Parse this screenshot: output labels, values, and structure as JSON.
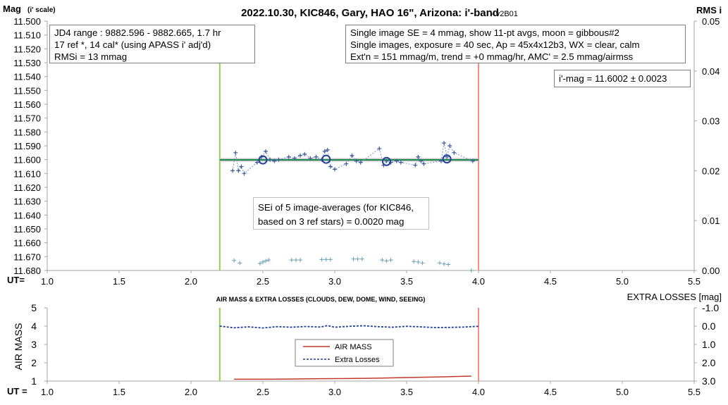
{
  "chart_data": [
    {
      "type": "scatter",
      "title": "2022.10.30, KIC846, Gary, HAO 16\", Arizona: i'-band",
      "version": "- v2B01",
      "ylabel_left": "Mag",
      "ylabel_left_sub": "(i' scale)",
      "ylabel_right": "RMS i",
      "xlabel": "UT=",
      "xlim": [
        1.0,
        5.5
      ],
      "ylim_left": [
        11.5,
        11.68
      ],
      "ylim_right": [
        0.0,
        0.05
      ],
      "left_ticks": [
        "11.500",
        "11.510",
        "11.520",
        "11.530",
        "11.540",
        "11.550",
        "11.560",
        "11.570",
        "11.580",
        "11.590",
        "11.600",
        "11.610",
        "11.620",
        "11.630",
        "11.640",
        "11.650",
        "11.660",
        "11.670",
        "11.680"
      ],
      "right_ticks": [
        "0.05",
        "0.04",
        "0.03",
        "0.02",
        "0.01",
        "0.00"
      ],
      "x_ticks": [
        "1.0",
        "1.5",
        "2.0",
        "2.5",
        "3.0",
        "3.5",
        "4.0",
        "4.5",
        "5.0",
        "5.5"
      ],
      "vlines": [
        {
          "name": "start",
          "x": 2.2,
          "color": "#92d050"
        },
        {
          "name": "end",
          "x": 4.0,
          "color": "#ff8a80"
        }
      ],
      "fit_line": {
        "x": [
          2.2,
          4.0
        ],
        "y": 11.6002,
        "color": "#1e8c4e"
      },
      "series": [
        {
          "kind": "single-images",
          "x": [
            2.29,
            2.31,
            2.33,
            2.35,
            2.37,
            2.46,
            2.49,
            2.52,
            2.55,
            2.58,
            2.61,
            2.68,
            2.72,
            2.76,
            2.79,
            2.83,
            2.87,
            2.91,
            2.93,
            2.95,
            2.97,
            3.0,
            3.08,
            3.12,
            3.15,
            3.18,
            3.31,
            3.34,
            3.36,
            3.39,
            3.43,
            3.46,
            3.56,
            3.58,
            3.6,
            3.62,
            3.74,
            3.76,
            3.78,
            3.8,
            3.83,
            3.96
          ],
          "y": [
            11.608,
            11.595,
            11.608,
            11.605,
            11.61,
            11.602,
            11.598,
            11.594,
            11.6,
            11.601,
            11.6,
            11.598,
            11.599,
            11.597,
            11.596,
            11.599,
            11.598,
            11.6,
            11.594,
            11.593,
            11.605,
            11.607,
            11.603,
            11.597,
            11.601,
            11.602,
            11.592,
            11.604,
            11.601,
            11.602,
            11.601,
            11.602,
            11.604,
            11.598,
            11.601,
            11.603,
            11.601,
            11.588,
            11.598,
            11.59,
            11.595,
            11.601
          ]
        },
        {
          "kind": "11-pt averages",
          "x": [
            2.5,
            2.94,
            3.36,
            3.78
          ],
          "y": [
            11.6002,
            11.5997,
            11.6013,
            11.5995
          ]
        },
        {
          "kind": "RMS (right axis)",
          "x": [
            2.3,
            2.34,
            2.48,
            2.5,
            2.52,
            2.54,
            2.7,
            2.73,
            2.76,
            2.91,
            2.94,
            2.97,
            3.13,
            3.16,
            3.19,
            3.33,
            3.36,
            3.39,
            3.55,
            3.58,
            3.61,
            3.73,
            3.76,
            3.79,
            3.95
          ],
          "y": [
            0.002,
            0.0015,
            0.0014,
            0.0017,
            0.0019,
            0.0021,
            0.0021,
            0.0021,
            0.0021,
            0.0022,
            0.0022,
            0.0022,
            0.0023,
            0.0023,
            0.0023,
            0.0021,
            0.0019,
            0.0021,
            0.0018,
            0.0017,
            0.0015,
            0.0015,
            0.0013,
            0.0012,
            0.0
          ]
        }
      ],
      "info_left": [
        "JD4 range : 9882.596 - 9882.665, 1.7  hr",
        "17 ref *, 14 cal* (using APASS i' adj'd)",
        "RMSi = 13 mmag"
      ],
      "info_right": [
        "Single image SE = 4 mmag, show 11-pt avgs, moon = gibbous#2",
        "Single images, exposure = 40 sec, Ap = 45x4x12b3, WX = clear, calm",
        "Ext'n = 151 mmag/m, trend = +0 mmag/hr, AMC' = 2.5 mmag/airmss"
      ],
      "result_box": "i'-mag = 11.6002 ± 0.0023",
      "sei_note": [
        "SEi of 5 image-averages (for KIC846,",
        "based on 3 ref stars) = 0.0020 mag"
      ]
    },
    {
      "type": "line",
      "title": "AIR MASS & EXTRA LOSSES (CLOUDS, DEW, DOME, WIND, SEEING)",
      "ylabel_left": "AIR MASS",
      "ylabel_right": "EXTRA LOSSES [mag]",
      "xlabel": "UT =",
      "xlim": [
        1.0,
        5.5
      ],
      "ylim_left": [
        1,
        5
      ],
      "ylim_right": [
        -1.0,
        3.0
      ],
      "left_ticks": [
        "5",
        "4",
        "3",
        "2",
        "1"
      ],
      "right_ticks": [
        "-1.0",
        "0.0",
        "1.0",
        "2.0",
        "3.0"
      ],
      "x_ticks": [
        "1.0",
        "1.5",
        "2.0",
        "2.5",
        "3.0",
        "3.5",
        "4.0",
        "4.5",
        "5.0",
        "5.5"
      ],
      "vlines": [
        {
          "name": "start",
          "x": 2.2,
          "color": "#92d050"
        },
        {
          "name": "end",
          "x": 4.0,
          "color": "#ff8a80"
        }
      ],
      "series": [
        {
          "name": "AIR MASS",
          "color": "#c0392b",
          "axis": "left",
          "x": [
            2.3,
            2.5,
            2.7,
            2.9,
            3.1,
            3.3,
            3.5,
            3.7,
            3.8,
            3.95
          ],
          "y": [
            1.1,
            1.1,
            1.11,
            1.13,
            1.14,
            1.16,
            1.19,
            1.22,
            1.24,
            1.27
          ]
        },
        {
          "name": "Extra Losses",
          "color": "#1f3f9a",
          "axis": "right",
          "x": [
            2.2,
            2.3,
            2.4,
            2.5,
            2.6,
            2.7,
            2.8,
            2.9,
            2.95,
            3.0,
            3.1,
            3.2,
            3.3,
            3.4,
            3.5,
            3.6,
            3.7,
            3.8,
            3.9,
            4.0
          ],
          "y": [
            0.0,
            0.09,
            0.04,
            0.1,
            0.03,
            0.06,
            0.02,
            0.05,
            -0.03,
            0.06,
            0.01,
            -0.02,
            0.03,
            0.06,
            0.01,
            0.04,
            0.08,
            0.07,
            0.05,
            0.01
          ]
        }
      ]
    }
  ]
}
